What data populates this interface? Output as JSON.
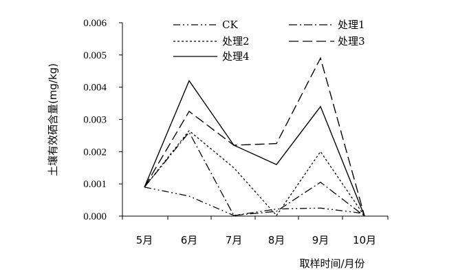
{
  "chart_data": {
    "type": "line",
    "categories": [
      "5月",
      "6月",
      "7月",
      "8月",
      "9月",
      "10月"
    ],
    "ylabel": "土壤有效硒含量(mg/kg)",
    "xlabel": "取样时间/月份",
    "ylim": [
      0,
      0.006
    ],
    "yticks": [
      "0.000",
      "0.001",
      "0.002",
      "0.003",
      "0.004",
      "0.005",
      "0.006"
    ],
    "grid": false,
    "legend_position": "top",
    "series": [
      {
        "name": "CK",
        "values": [
          0.0009,
          0.00062,
          2e-05,
          0.00022,
          0.00025,
          8e-05
        ],
        "dash": "10,4,2,4,2,4"
      },
      {
        "name": "处理1",
        "values": [
          0.0009,
          0.0026,
          2e-05,
          0.00015,
          0.00105,
          0.0
        ],
        "dash": "12,4,2,4"
      },
      {
        "name": "处理2",
        "values": [
          0.0009,
          0.00265,
          0.0015,
          2e-05,
          0.002,
          0.0
        ],
        "dash": "3,3"
      },
      {
        "name": "处理3",
        "values": [
          0.0009,
          0.00325,
          0.0022,
          0.00225,
          0.0049,
          0.0
        ],
        "dash": "14,6"
      },
      {
        "name": "处理4",
        "values": [
          0.0009,
          0.0042,
          0.0022,
          0.0016,
          0.0034,
          0.0
        ],
        "dash": ""
      }
    ]
  }
}
